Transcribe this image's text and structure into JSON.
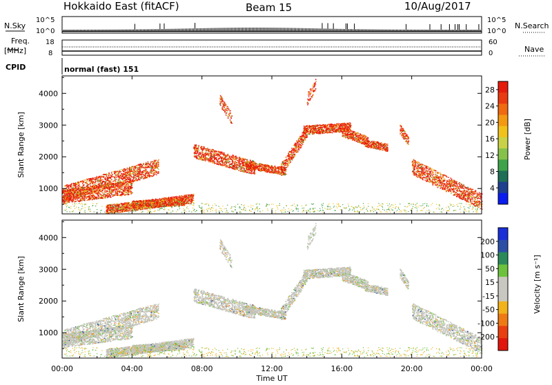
{
  "header": {
    "title": "Hokkaido East (fitACF)",
    "beam": "Beam 15",
    "date": "10/Aug/2017"
  },
  "top_panels": {
    "nsky_label": "N.Sky",
    "nsky_ticks": [
      "10^5",
      "10^0"
    ],
    "nsearch_label": "N.Search",
    "freq_label_1": "Freq.",
    "freq_label_2": "[MHz]",
    "freq_ticks": [
      "18",
      "8"
    ],
    "nave_ticks": [
      "60",
      "0"
    ],
    "nave_label": "Nave",
    "cpid_label": "CPID",
    "cpid_value": "normal (fast) 151"
  },
  "chart_data": [
    {
      "type": "heatmap",
      "name": "power",
      "ylabel": "Slant Range [km]",
      "yticks": [
        "1000",
        "2000",
        "3000",
        "4000"
      ],
      "ylim": [
        200,
        4550
      ],
      "colorbar_label": "Power [dB]",
      "colorbar_ticks": [
        "4",
        "8",
        "12",
        "16",
        "20",
        "24",
        "28"
      ],
      "colorbar_colors": [
        "#0a1cf0",
        "#1f3f8f",
        "#1f6e56",
        "#3fa34a",
        "#86c24a",
        "#c9d246",
        "#f2c21c",
        "#f49a12",
        "#f06a10",
        "#ea3a10",
        "#e51c0c"
      ],
      "colorbar_range": [
        0,
        30
      ]
    },
    {
      "type": "heatmap",
      "name": "velocity",
      "ylabel": "Slant Range [km]",
      "yticks": [
        "1000",
        "2000",
        "3000",
        "4000"
      ],
      "ylim": [
        200,
        4550
      ],
      "colorbar_label": "Velocity [m s⁻¹]",
      "colorbar_ticks": [
        "200",
        "100",
        "50",
        "15",
        "-15",
        "-50",
        "-100",
        "-200"
      ],
      "colorbar_colors": [
        "#1a2fd8",
        "#2c4fa6",
        "#2c8a5a",
        "#6cc23c",
        "#c8c8c0",
        "#c8c8c0",
        "#f2b21a",
        "#ef7a14",
        "#e93e10",
        "#e2160c"
      ],
      "colorbar_range": [
        -250,
        250
      ]
    }
  ],
  "xaxis": {
    "ticks": [
      "00:00",
      "04:00",
      "08:00",
      "12:00",
      "16:00",
      "20:00",
      "00:00"
    ],
    "label": "Time UT"
  },
  "colors": {
    "power": {
      "red": "#e81a0c",
      "orange": "#f07a14",
      "yellow": "#f2c21c",
      "lime": "#9ccc44",
      "green": "#3fa34a",
      "teal": "#1f6e56",
      "blue": "#1f3f8f"
    },
    "velocity": {
      "grey": "#c3c3bb",
      "green": "#6cc23c",
      "yellow": "#f2b21a",
      "orange": "#ef7a14",
      "blue": "#2c4fa6"
    }
  }
}
